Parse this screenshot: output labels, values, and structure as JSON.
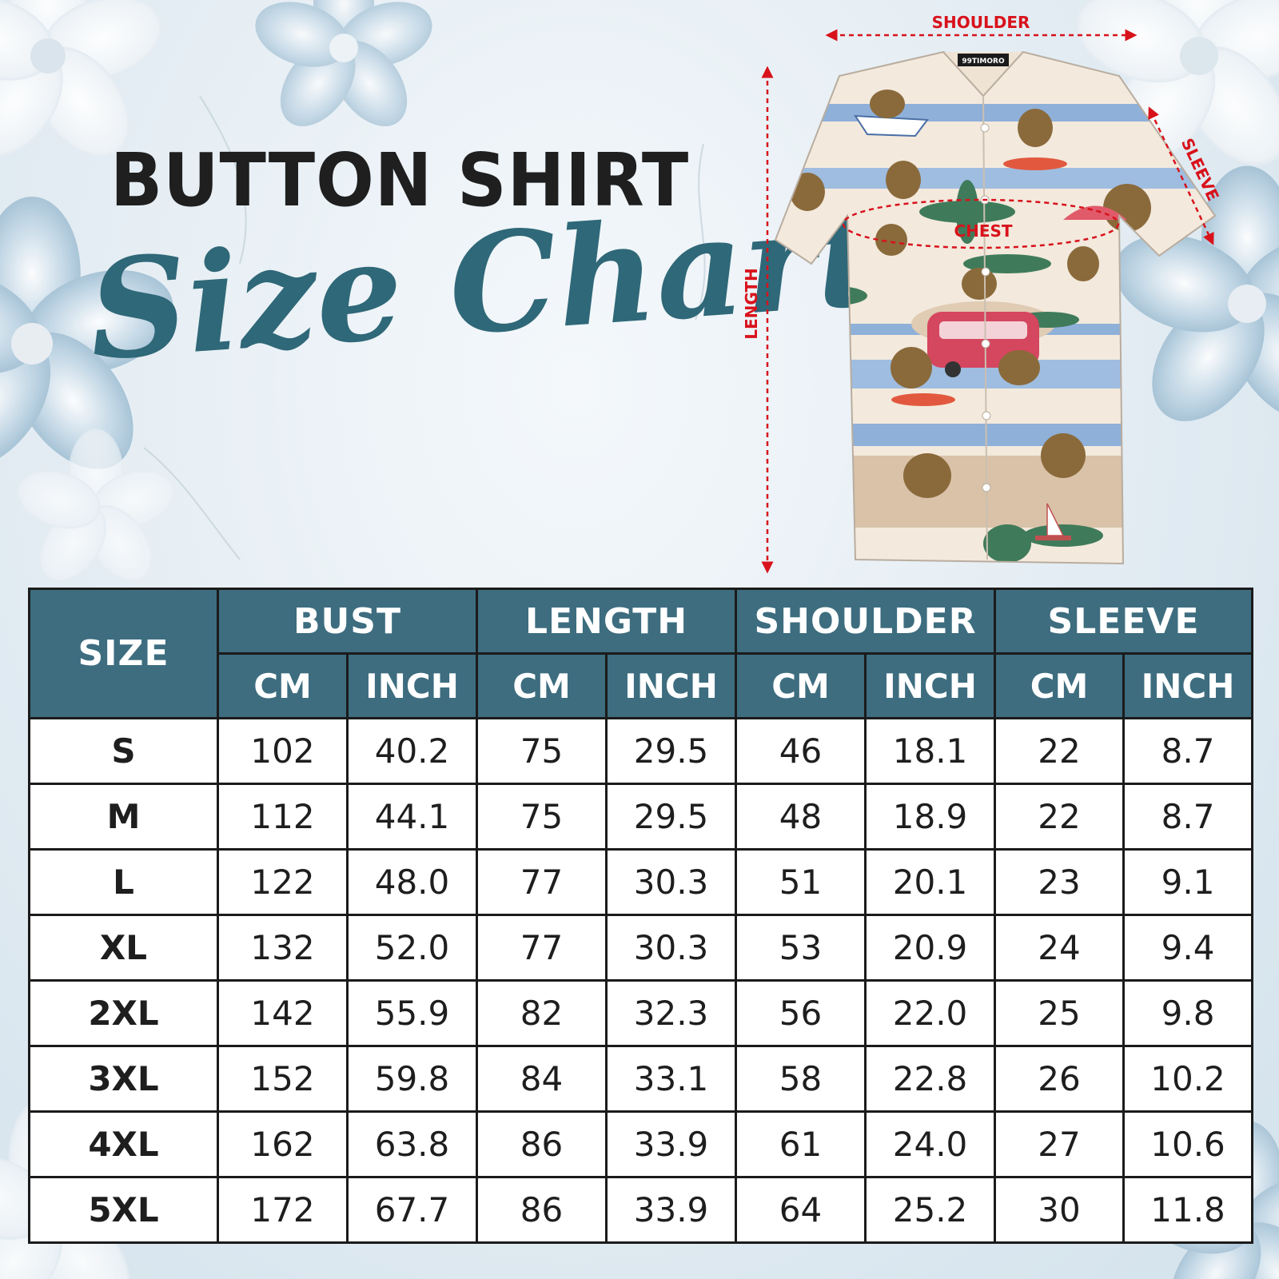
{
  "header": {
    "title": "BUTTON SHIRT",
    "subtitle": "Size Chart"
  },
  "diagram": {
    "brand_tag": "99TIMORO",
    "labels": {
      "shoulder": "SHOULDER",
      "sleeve": "SLEEVE",
      "chest": "CHEST",
      "length": "LENGTH"
    },
    "colors": {
      "arrow": "#d8121b",
      "shirt_base": "#f3e9dd",
      "sea": "#8fb0d8",
      "sand": "#d9c2a8",
      "palm": "#3f7b5a"
    }
  },
  "table": {
    "size_header": "SIZE",
    "groups": [
      "BUST",
      "LENGTH",
      "SHOULDER",
      "SLEEVE"
    ],
    "units": [
      "CM",
      "INCH",
      "CM",
      "INCH",
      "CM",
      "INCH",
      "CM",
      "INCH"
    ],
    "rows": [
      {
        "size": "S",
        "values": [
          "102",
          "40.2",
          "75",
          "29.5",
          "46",
          "18.1",
          "22",
          "8.7"
        ]
      },
      {
        "size": "M",
        "values": [
          "112",
          "44.1",
          "75",
          "29.5",
          "48",
          "18.9",
          "22",
          "8.7"
        ]
      },
      {
        "size": "L",
        "values": [
          "122",
          "48.0",
          "77",
          "30.3",
          "51",
          "20.1",
          "23",
          "9.1"
        ]
      },
      {
        "size": "XL",
        "values": [
          "132",
          "52.0",
          "77",
          "30.3",
          "53",
          "20.9",
          "24",
          "9.4"
        ]
      },
      {
        "size": "2XL",
        "values": [
          "142",
          "55.9",
          "82",
          "32.3",
          "56",
          "22.0",
          "25",
          "9.8"
        ]
      },
      {
        "size": "3XL",
        "values": [
          "152",
          "59.8",
          "84",
          "33.1",
          "58",
          "22.8",
          "26",
          "10.2"
        ]
      },
      {
        "size": "4XL",
        "values": [
          "162",
          "63.8",
          "86",
          "33.9",
          "61",
          "24.0",
          "27",
          "10.6"
        ]
      },
      {
        "size": "5XL",
        "values": [
          "172",
          "67.7",
          "86",
          "33.9",
          "64",
          "25.2",
          "30",
          "11.8"
        ]
      }
    ],
    "colors": {
      "header_bg": "#3d6d7f",
      "header_text": "#ffffff",
      "body_bg": "#ffffff",
      "border": "#1b1b1b"
    }
  }
}
